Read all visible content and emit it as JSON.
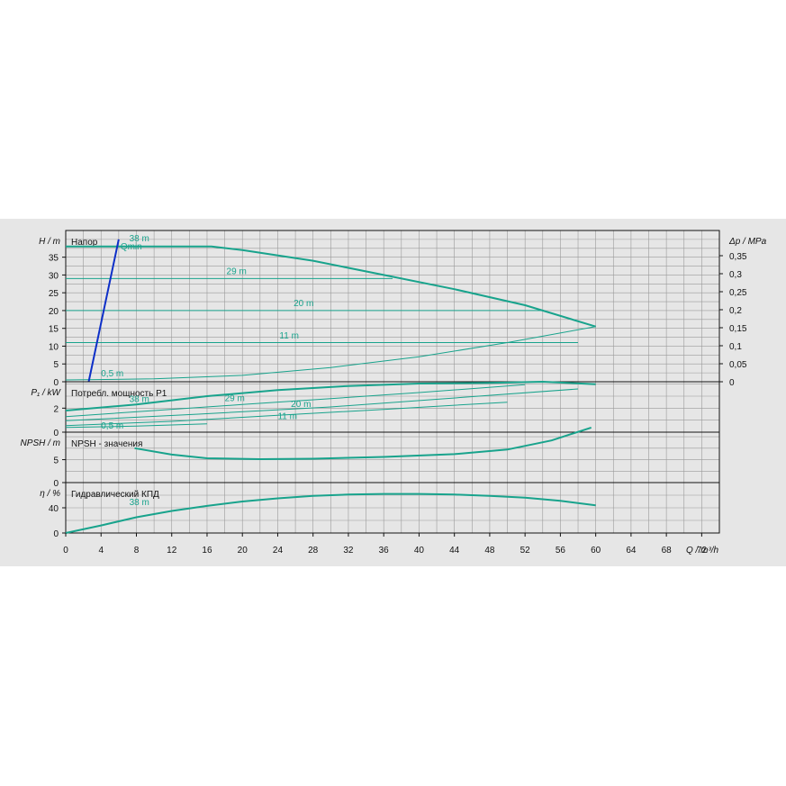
{
  "chart_data": {
    "type": "line",
    "x_axis": {
      "label": "Q / m³/h",
      "range": [
        0,
        74
      ],
      "ticks": [
        0,
        4,
        8,
        12,
        16,
        20,
        24,
        28,
        32,
        36,
        40,
        44,
        48,
        52,
        56,
        60,
        64,
        68,
        72
      ]
    },
    "panels": [
      {
        "id": "head",
        "title": "Напор",
        "ylabel": "H / m",
        "ylim": [
          0,
          42.5
        ],
        "yticks": [
          0,
          5,
          10,
          15,
          20,
          25,
          30,
          35
        ],
        "right_axis": {
          "label": "Δp / MPa",
          "ticks": [
            "0",
            "0,05",
            "0,1",
            "0,15",
            "0,2",
            "0,25",
            "0,3",
            "0,35"
          ]
        },
        "series": [
          {
            "name": "38 m",
            "points": [
              [
                0,
                38
              ],
              [
                16.5,
                38
              ],
              [
                20,
                37
              ],
              [
                28,
                34
              ],
              [
                36,
                30
              ],
              [
                44,
                26
              ],
              [
                52,
                21.5
              ],
              [
                60,
                15.5
              ]
            ]
          },
          {
            "name": "29 m",
            "points": [
              [
                0,
                29
              ],
              [
                37,
                29
              ]
            ]
          },
          {
            "name": "20 m",
            "points": [
              [
                0,
                20
              ],
              [
                54,
                20
              ]
            ]
          },
          {
            "name": "11 m",
            "points": [
              [
                0,
                11
              ],
              [
                58,
                11
              ]
            ]
          },
          {
            "name": "0,5 m",
            "points": [
              [
                0,
                0.5
              ],
              [
                10,
                0.8
              ],
              [
                20,
                1.8
              ],
              [
                30,
                4
              ],
              [
                40,
                7
              ],
              [
                50,
                11
              ],
              [
                60,
                15.5
              ]
            ]
          }
        ],
        "qmin": {
          "label": "Qmin",
          "points": [
            [
              2.6,
              0
            ],
            [
              6,
              40
            ]
          ]
        },
        "curve_labels": [
          {
            "text": "38 m",
            "x": 7.2,
            "y": 39.5
          },
          {
            "text": "29 m",
            "x": 18.2,
            "y": 30.2
          },
          {
            "text": "20 m",
            "x": 25.8,
            "y": 21.2
          },
          {
            "text": "11 m",
            "x": 24.2,
            "y": 12.2
          },
          {
            "text": "0,5 m",
            "x": 4,
            "y": 1.5
          }
        ]
      },
      {
        "id": "power",
        "title": "Потребл. мощность P1",
        "ylabel": "P₁ / kW",
        "ylim": [
          0,
          4.2
        ],
        "yticks": [
          0,
          2
        ],
        "series": [
          {
            "name": "38 m",
            "points": [
              [
                0,
                1.8
              ],
              [
                8,
                2.3
              ],
              [
                16,
                3
              ],
              [
                24,
                3.5
              ],
              [
                32,
                3.85
              ],
              [
                40,
                4.05
              ],
              [
                48,
                4.1
              ],
              [
                54,
                4.2
              ],
              [
                60,
                4.0
              ]
            ]
          },
          {
            "name": "29 m",
            "points": [
              [
                0,
                1.3
              ],
              [
                10,
                1.8
              ],
              [
                20,
                2.3
              ],
              [
                30,
                2.8
              ],
              [
                40,
                3.3
              ],
              [
                52,
                3.95
              ]
            ]
          },
          {
            "name": "20 m",
            "points": [
              [
                0,
                0.95
              ],
              [
                15,
                1.5
              ],
              [
                30,
                2.1
              ],
              [
                45,
                2.9
              ],
              [
                58,
                3.6
              ]
            ]
          },
          {
            "name": "11 m",
            "points": [
              [
                0,
                0.55
              ],
              [
                12,
                0.9
              ],
              [
                24,
                1.4
              ],
              [
                36,
                1.9
              ],
              [
                50,
                2.5
              ]
            ]
          },
          {
            "name": "0,5 m",
            "points": [
              [
                0,
                0.4
              ],
              [
                8,
                0.5
              ],
              [
                16,
                0.7
              ]
            ]
          }
        ],
        "curve_labels": [
          {
            "text": "38 m",
            "x": 7.2,
            "y": 2.5
          },
          {
            "text": "29 m",
            "x": 18,
            "y": 2.6
          },
          {
            "text": "20 m",
            "x": 25.5,
            "y": 2.1
          },
          {
            "text": "11 m",
            "x": 24,
            "y": 1.1
          },
          {
            "text": "0,5 m",
            "x": 4,
            "y": 0.3
          }
        ]
      },
      {
        "id": "npsh",
        "title": "NPSH - значения",
        "ylabel": "NPSH / m",
        "ylim": [
          0,
          11
        ],
        "yticks": [
          0,
          5
        ],
        "series": [
          {
            "name": "38 m",
            "points": [
              [
                7.8,
                7.5
              ],
              [
                12,
                6.1
              ],
              [
                16,
                5.3
              ],
              [
                22,
                5.1
              ],
              [
                28,
                5.2
              ],
              [
                36,
                5.6
              ],
              [
                44,
                6.2
              ],
              [
                50,
                7.2
              ],
              [
                55,
                9.2
              ],
              [
                59.5,
                12
              ]
            ]
          }
        ]
      },
      {
        "id": "efficiency",
        "title": "Гидравлический КПД",
        "ylabel": "η / %",
        "ylim": [
          0,
          80
        ],
        "yticks": [
          0,
          40
        ],
        "series": [
          {
            "name": "38 m",
            "points": [
              [
                0,
                0
              ],
              [
                4,
                12
              ],
              [
                8,
                25
              ],
              [
                12,
                35
              ],
              [
                16,
                43
              ],
              [
                20,
                50
              ],
              [
                24,
                55
              ],
              [
                28,
                59
              ],
              [
                32,
                61
              ],
              [
                36,
                62
              ],
              [
                40,
                62
              ],
              [
                44,
                61
              ],
              [
                48,
                59
              ],
              [
                52,
                56
              ],
              [
                56,
                51
              ],
              [
                60,
                44
              ]
            ]
          }
        ],
        "curve_labels": [
          {
            "text": "38 m",
            "x": 7.2,
            "y": 44
          }
        ]
      }
    ],
    "colors": {
      "curve": "#18a38c",
      "qmin": "#0d2fc8",
      "grid": "#9a9a9a",
      "background": "#e6e6e6"
    }
  }
}
